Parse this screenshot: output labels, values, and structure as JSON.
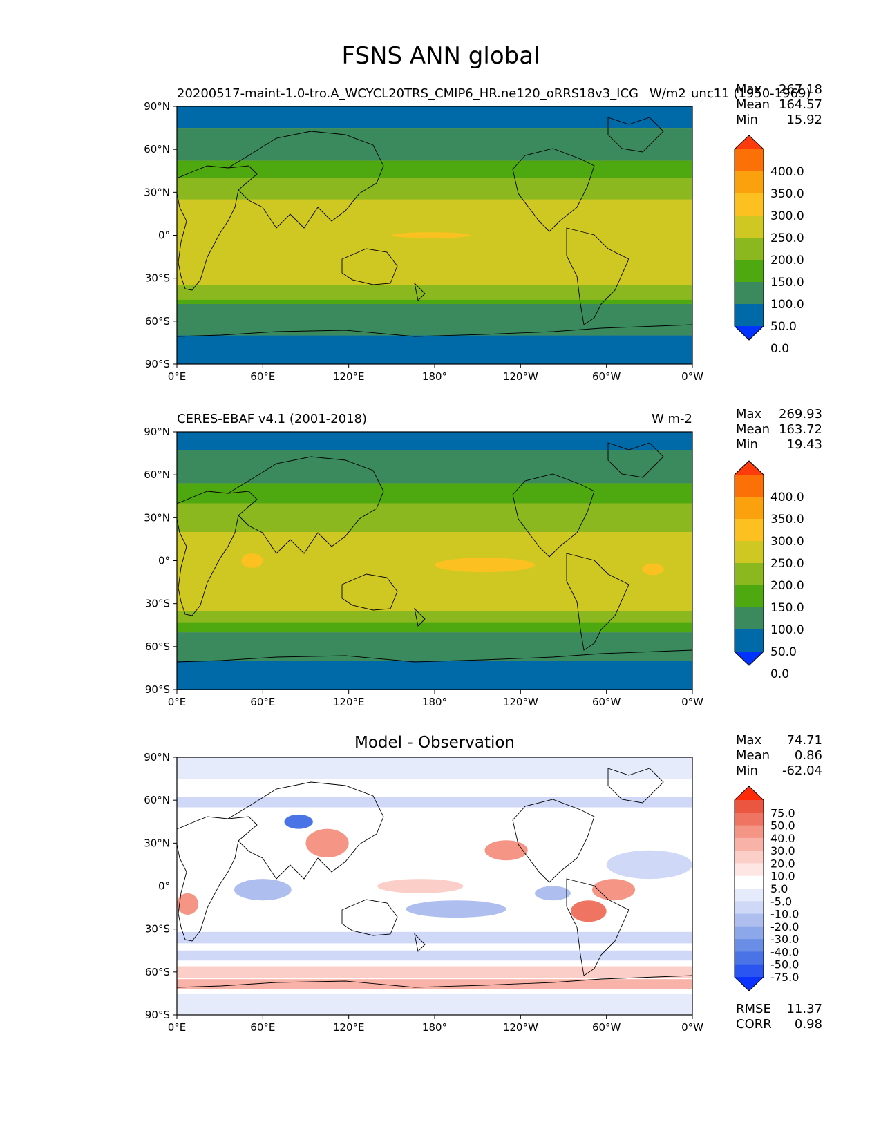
{
  "title": "FSNS ANN global",
  "x_ticks": [
    "0°E",
    "60°E",
    "120°E",
    "180°",
    "120°W",
    "60°W",
    "0°W"
  ],
  "y_ticks": [
    "90°N",
    "60°N",
    "30°N",
    "0°",
    "30°S",
    "60°S",
    "90°S"
  ],
  "stat_labels": {
    "max": "Max",
    "mean": "Mean",
    "min": "Min",
    "rmse": "RMSE",
    "corr": "CORR"
  },
  "colors": {
    "field_levels": [
      "#0033ff",
      "#006aa8",
      "#3a8a5e",
      "#4ea80f",
      "#8ab81e",
      "#d0c822",
      "#fcc120",
      "#fca10e",
      "#fc7008",
      "#fe3b0a"
    ],
    "diff_levels": [
      "#0a33ff",
      "#2b55f0",
      "#4a73e6",
      "#6a8ee6",
      "#8ca8ea",
      "#aebeef",
      "#cfd8f7",
      "#e6ebfb",
      "#ffffff",
      "#fde6e3",
      "#fbcfc8",
      "#f8b2a7",
      "#f49585",
      "#ef7562",
      "#ea5640",
      "#fe2a0a"
    ]
  },
  "chart_data": [
    {
      "type": "heatmap",
      "panel": "model",
      "title_left": "20200517-maint-1.0-tro.A_WCYCL20TRS_CMIP6_HR.ne120_oRRS18v3_ICG",
      "title_right": "W/m2",
      "title_extra": "unc11 (1950-1969)",
      "xlim": [
        0,
        360
      ],
      "ylim": [
        -90,
        90
      ],
      "max": "267.18",
      "mean": "164.57",
      "min": "15.92",
      "colorbar_ticks": [
        "400.0",
        "350.0",
        "300.0",
        "250.0",
        "200.0",
        "150.0",
        "100.0",
        "50.0",
        "0.0"
      ],
      "zonal_bands": [
        {
          "lat": [
            75,
            90
          ],
          "level": 1
        },
        {
          "lat": [
            52,
            75
          ],
          "level": 2
        },
        {
          "lat": [
            40,
            52
          ],
          "level": 3
        },
        {
          "lat": [
            25,
            40
          ],
          "level": 4
        },
        {
          "lat": [
            -35,
            25
          ],
          "level": 5
        },
        {
          "lat": [
            -45,
            -35
          ],
          "level": 4
        },
        {
          "lat": [
            -48,
            -45
          ],
          "level": 3
        },
        {
          "lat": [
            -70,
            -48
          ],
          "level": 2
        },
        {
          "lat": [
            -90,
            -70
          ],
          "level": 1
        }
      ],
      "patches": [
        {
          "lon": [
            150,
            205
          ],
          "lat": [
            -2,
            2
          ],
          "level": 6
        }
      ]
    },
    {
      "type": "heatmap",
      "panel": "observation",
      "title_left": "CERES-EBAF v4.1 (2001-2018)",
      "title_right": "W m-2",
      "xlim": [
        0,
        360
      ],
      "ylim": [
        -90,
        90
      ],
      "max": "269.93",
      "mean": "163.72",
      "min": "19.43",
      "colorbar_ticks": [
        "400.0",
        "350.0",
        "300.0",
        "250.0",
        "200.0",
        "150.0",
        "100.0",
        "50.0",
        "0.0"
      ],
      "zonal_bands": [
        {
          "lat": [
            77,
            90
          ],
          "level": 1
        },
        {
          "lat": [
            54,
            77
          ],
          "level": 2
        },
        {
          "lat": [
            40,
            54
          ],
          "level": 3
        },
        {
          "lat": [
            20,
            40
          ],
          "level": 4
        },
        {
          "lat": [
            -35,
            20
          ],
          "level": 5
        },
        {
          "lat": [
            -43,
            -35
          ],
          "level": 4
        },
        {
          "lat": [
            -50,
            -43
          ],
          "level": 3
        },
        {
          "lat": [
            -70,
            -50
          ],
          "level": 2
        },
        {
          "lat": [
            -90,
            -70
          ],
          "level": 1
        }
      ],
      "patches": [
        {
          "lon": [
            180,
            250
          ],
          "lat": [
            -8,
            2
          ],
          "level": 6
        },
        {
          "lon": [
            45,
            60
          ],
          "lat": [
            -5,
            5
          ],
          "level": 6
        },
        {
          "lon": [
            325,
            340
          ],
          "lat": [
            -10,
            -2
          ],
          "level": 6
        }
      ]
    },
    {
      "type": "heatmap",
      "panel": "difference",
      "title_center": "Model - Observation",
      "xlim": [
        0,
        360
      ],
      "ylim": [
        -90,
        90
      ],
      "max": "74.71",
      "mean": "0.86",
      "min": "-62.04",
      "rmse": "11.37",
      "corr": "0.98",
      "colorbar_ticks": [
        "75.0",
        "50.0",
        "40.0",
        "30.0",
        "20.0",
        "10.0",
        "5.0",
        "-5.0",
        "-10.0",
        "-20.0",
        "-30.0",
        "-40.0",
        "-50.0",
        "-75.0"
      ],
      "zonal_bands": [
        {
          "lat": [
            75,
            90
          ],
          "level": 7
        },
        {
          "lat": [
            55,
            62
          ],
          "level": 6
        },
        {
          "lat": [
            -40,
            -32
          ],
          "level": 6
        },
        {
          "lat": [
            -52,
            -45
          ],
          "level": 6
        },
        {
          "lat": [
            -64,
            -56
          ],
          "level": 10
        },
        {
          "lat": [
            -72,
            -65
          ],
          "level": 11
        },
        {
          "lat": [
            -90,
            -75
          ],
          "level": 7
        }
      ],
      "patches": [
        {
          "lon": [
            215,
            245
          ],
          "lat": [
            18,
            32
          ],
          "level": 12
        },
        {
          "lon": [
            275,
            300
          ],
          "lat": [
            -25,
            -10
          ],
          "level": 13
        },
        {
          "lon": [
            290,
            320
          ],
          "lat": [
            -10,
            5
          ],
          "level": 12
        },
        {
          "lon": [
            90,
            120
          ],
          "lat": [
            20,
            40
          ],
          "level": 12
        },
        {
          "lon": [
            0,
            15
          ],
          "lat": [
            -20,
            -5
          ],
          "level": 12
        },
        {
          "lon": [
            75,
            95
          ],
          "lat": [
            40,
            50
          ],
          "level": 2
        },
        {
          "lon": [
            140,
            200
          ],
          "lat": [
            -5,
            5
          ],
          "level": 10
        },
        {
          "lon": [
            40,
            80
          ],
          "lat": [
            -10,
            5
          ],
          "level": 5
        },
        {
          "lon": [
            160,
            230
          ],
          "lat": [
            -22,
            -10
          ],
          "level": 5
        },
        {
          "lon": [
            250,
            275
          ],
          "lat": [
            -10,
            0
          ],
          "level": 5
        },
        {
          "lon": [
            300,
            360
          ],
          "lat": [
            5,
            25
          ],
          "level": 6
        }
      ]
    }
  ]
}
